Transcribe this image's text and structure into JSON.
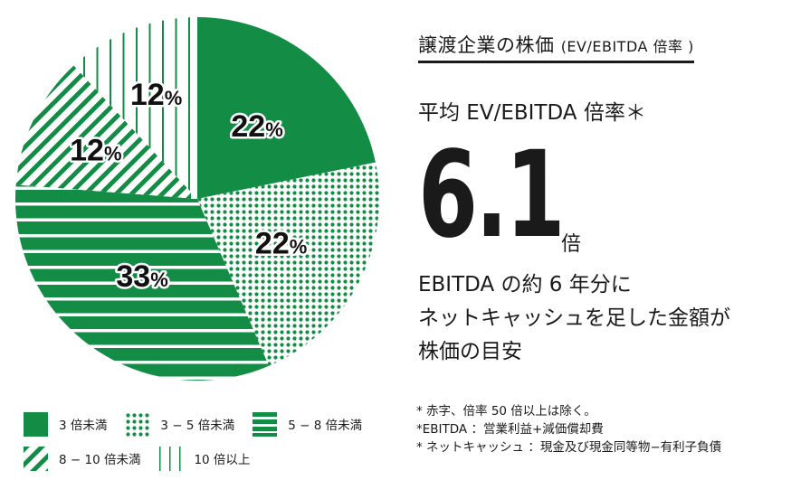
{
  "colors": {
    "green": "#138c45",
    "text": "#1a1a1a"
  },
  "chart_data": {
    "type": "pie",
    "title": "譲渡企業の株価 (EV/EBITDA 倍率)",
    "start": "top",
    "direction": "clockwise",
    "slices": [
      {
        "label": "3 倍未満",
        "value": 22,
        "display": "22%",
        "pattern": "solid"
      },
      {
        "label": "3 − 5 倍未満",
        "value": 22,
        "display": "22%",
        "pattern": "dots"
      },
      {
        "label": "5 − 8 倍未満",
        "value": 33,
        "display": "33%",
        "pattern": "horizontal"
      },
      {
        "label": "8 − 10 倍未満",
        "value": 12,
        "display": "12%",
        "pattern": "diagonal"
      },
      {
        "label": "10 倍以上",
        "value": 12,
        "display": "12%",
        "pattern": "vertical"
      }
    ],
    "legend_placement": "bottom-left"
  },
  "header": {
    "title": "譲渡企業の株価",
    "title_sub": "(EV/EBITDA 倍率 )"
  },
  "summary": {
    "avg_label": "平均 EV/EBITDA 倍率＊",
    "value": "6.1",
    "unit": "倍",
    "desc_lines": [
      "EBITDA の約 6 年分に",
      "ネットキャッシュを足した金額が",
      "株価の目安"
    ]
  },
  "legend": {
    "items": [
      "3 倍未満",
      "3 − 5 倍未満",
      "5 − 8 倍未満",
      "8 − 10 倍未満",
      "10 倍以上"
    ]
  },
  "notes": [
    "* 赤字、倍率 50 倍以上は除く。",
    "*EBITDA ：営業利益+減価償却費",
    "* ネットキャッシュ ：現金及び現金同等物−有利子負債"
  ]
}
